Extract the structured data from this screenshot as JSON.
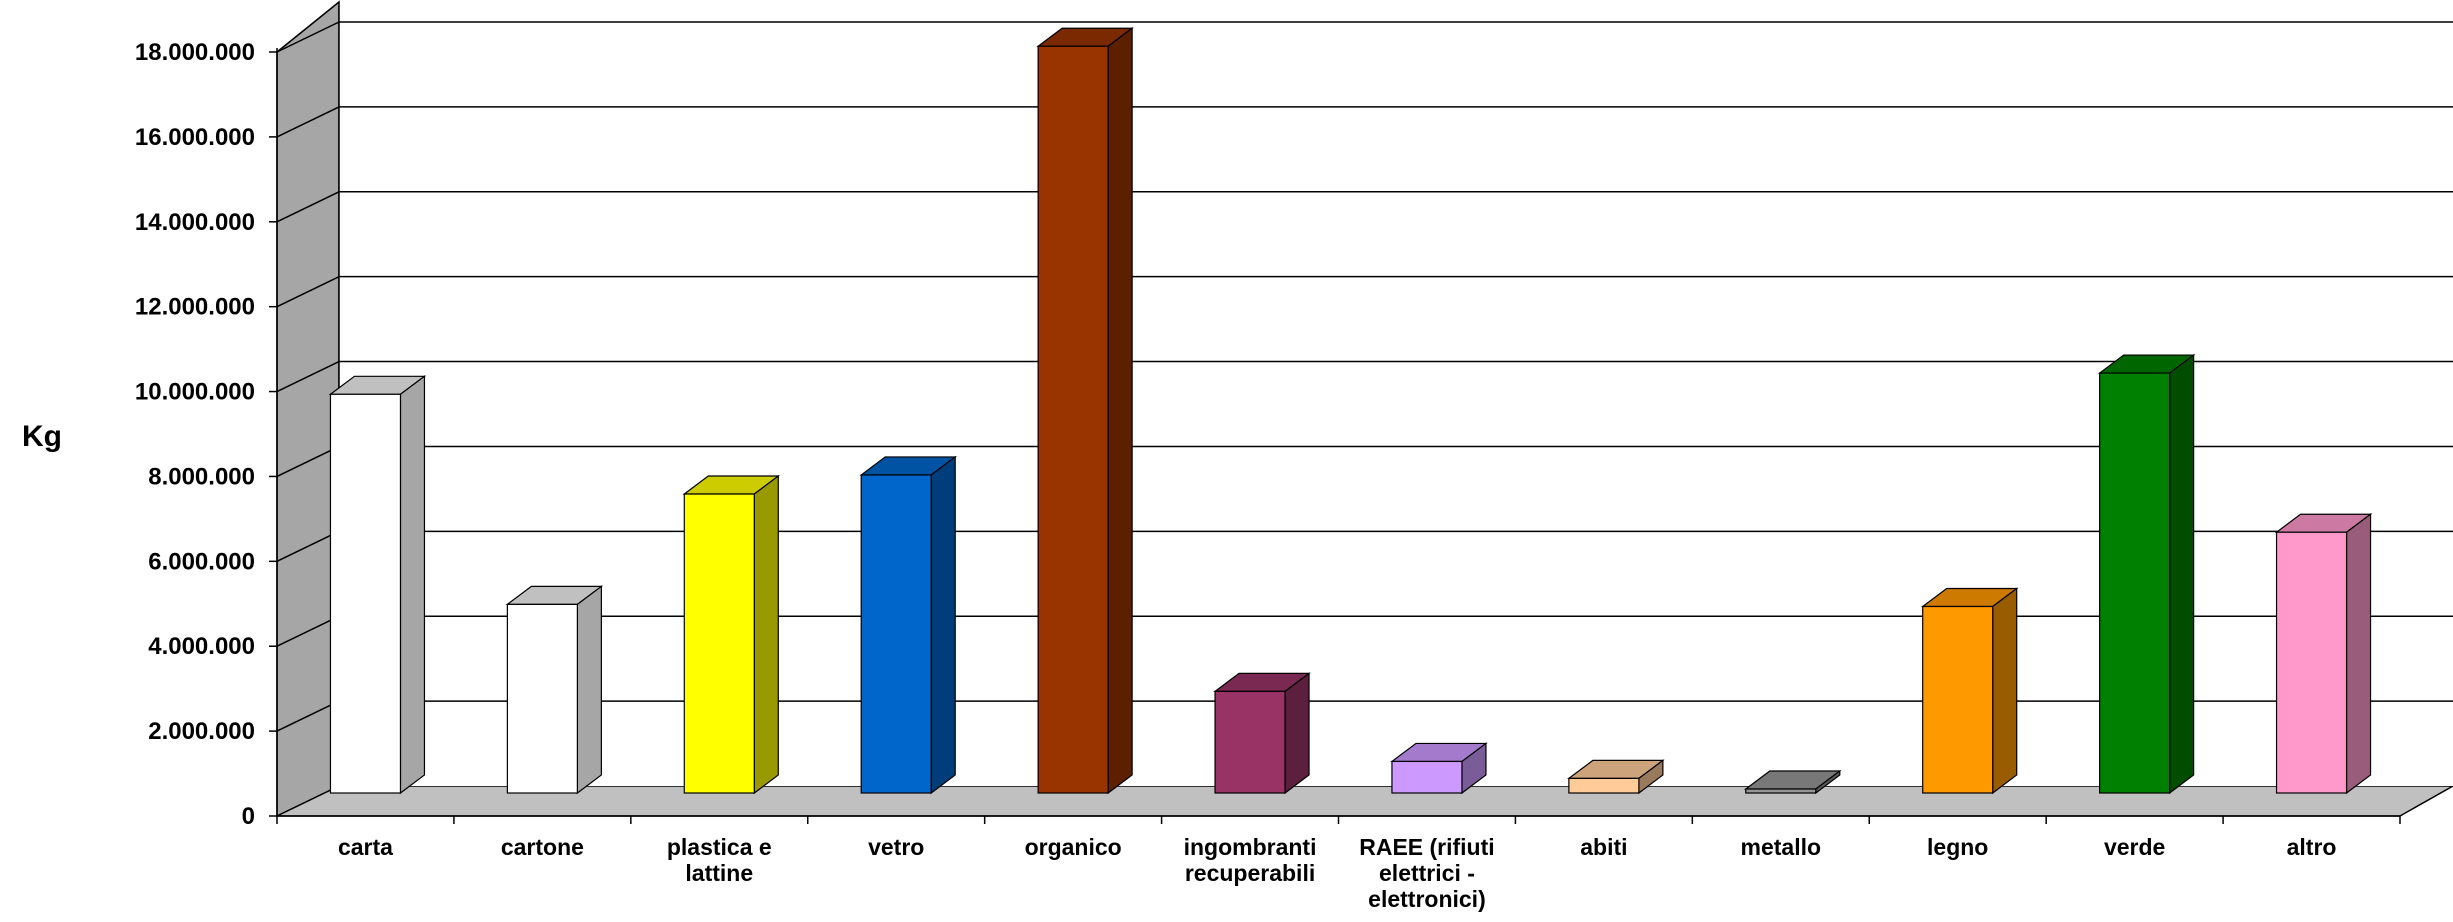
{
  "chart_data": {
    "type": "bar",
    "title": "",
    "xlabel": "",
    "ylabel": "Kg",
    "ylim": [
      0,
      18000000
    ],
    "yticks": [
      0,
      2000000,
      4000000,
      6000000,
      8000000,
      10000000,
      12000000,
      14000000,
      16000000,
      18000000
    ],
    "ytick_labels": [
      "0",
      "2.000.000",
      "4.000.000",
      "6.000.000",
      "8.000.000",
      "10.000.000",
      "12.000.000",
      "14.000.000",
      "16.000.000",
      "18.000.000"
    ],
    "grid": true,
    "legend": "none",
    "categories": [
      "carta",
      "cartone",
      "plastica e lattine",
      "vetro",
      "organico",
      "ingombranti recuperabili",
      "RAEE (rifiuti elettrici - elettronici)",
      "abiti",
      "metallo",
      "legno",
      "verde",
      "altro"
    ],
    "category_label_lines": [
      [
        "carta"
      ],
      [
        "cartone"
      ],
      [
        "plastica e",
        "lattine"
      ],
      [
        "vetro"
      ],
      [
        "organico"
      ],
      [
        "ingombranti",
        "recuperabili"
      ],
      [
        "RAEE (rifiuti",
        "elettrici -",
        "elettronici)"
      ],
      [
        "abiti"
      ],
      [
        "metallo"
      ],
      [
        "legno"
      ],
      [
        "verde"
      ],
      [
        "altro"
      ]
    ],
    "values": [
      9700000,
      4750000,
      7350000,
      7800000,
      17900000,
      2700000,
      1050000,
      650000,
      400000,
      4700000,
      10200000,
      6450000
    ],
    "bar_colors": [
      "#ffffff",
      "#ffffff",
      "#ffff00",
      "#0066cc",
      "#993300",
      "#993366",
      "#cc99ff",
      "#ffcc99",
      "#969696",
      "#ff9900",
      "#008000",
      "#ff99cc"
    ],
    "wall_color": "#a6a6a6",
    "floor_color": "#c0c0c0"
  }
}
